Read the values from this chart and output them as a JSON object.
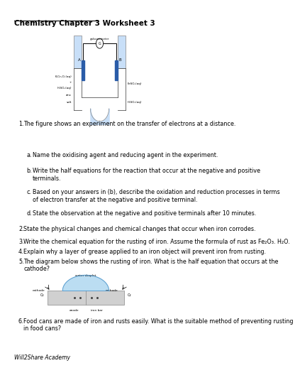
{
  "title": "Chemistry Chapter 3 Worksheet 3",
  "background_color": "#ffffff",
  "text_color": "#000000",
  "questions": [
    {
      "num": "1.",
      "text": "The figure shows an experiment on the transfer of electrons at a distance.",
      "sub": [
        {
          "letter": "a.",
          "text": "Name the oxidising agent and reducing agent in the experiment."
        },
        {
          "letter": "b.",
          "text": "Write the half equations for the reaction that occur at the negative and positive\nterminals."
        },
        {
          "letter": "c.",
          "text": "Based on your answers in (b), describe the oxidation and reduction processes in terms\nof electron transfer at the negative and positive terminal."
        },
        {
          "letter": "d.",
          "text": "State the observation at the negative and positive terminals after 10 minutes."
        }
      ]
    },
    {
      "num": "2.",
      "text": "State the physical changes and chemical changes that occur when iron corrodes."
    },
    {
      "num": "3.",
      "text": "Write the chemical equation for the rusting of iron. Assume the formula of rust as Fe₂O₃. H₂O."
    },
    {
      "num": "4.",
      "text": "Explain why a layer of grease applied to an iron object will prevent iron from rusting."
    },
    {
      "num": "5.",
      "text": "The diagram below shows the rusting of iron. What is the half equation that occurs at the\ncathode?"
    },
    {
      "num": "6.",
      "text": "Food cans are made of iron and rusts easily. What is the suitable method of preventing rusting\nin food cans?"
    }
  ],
  "footer": "Will2Share Academy"
}
